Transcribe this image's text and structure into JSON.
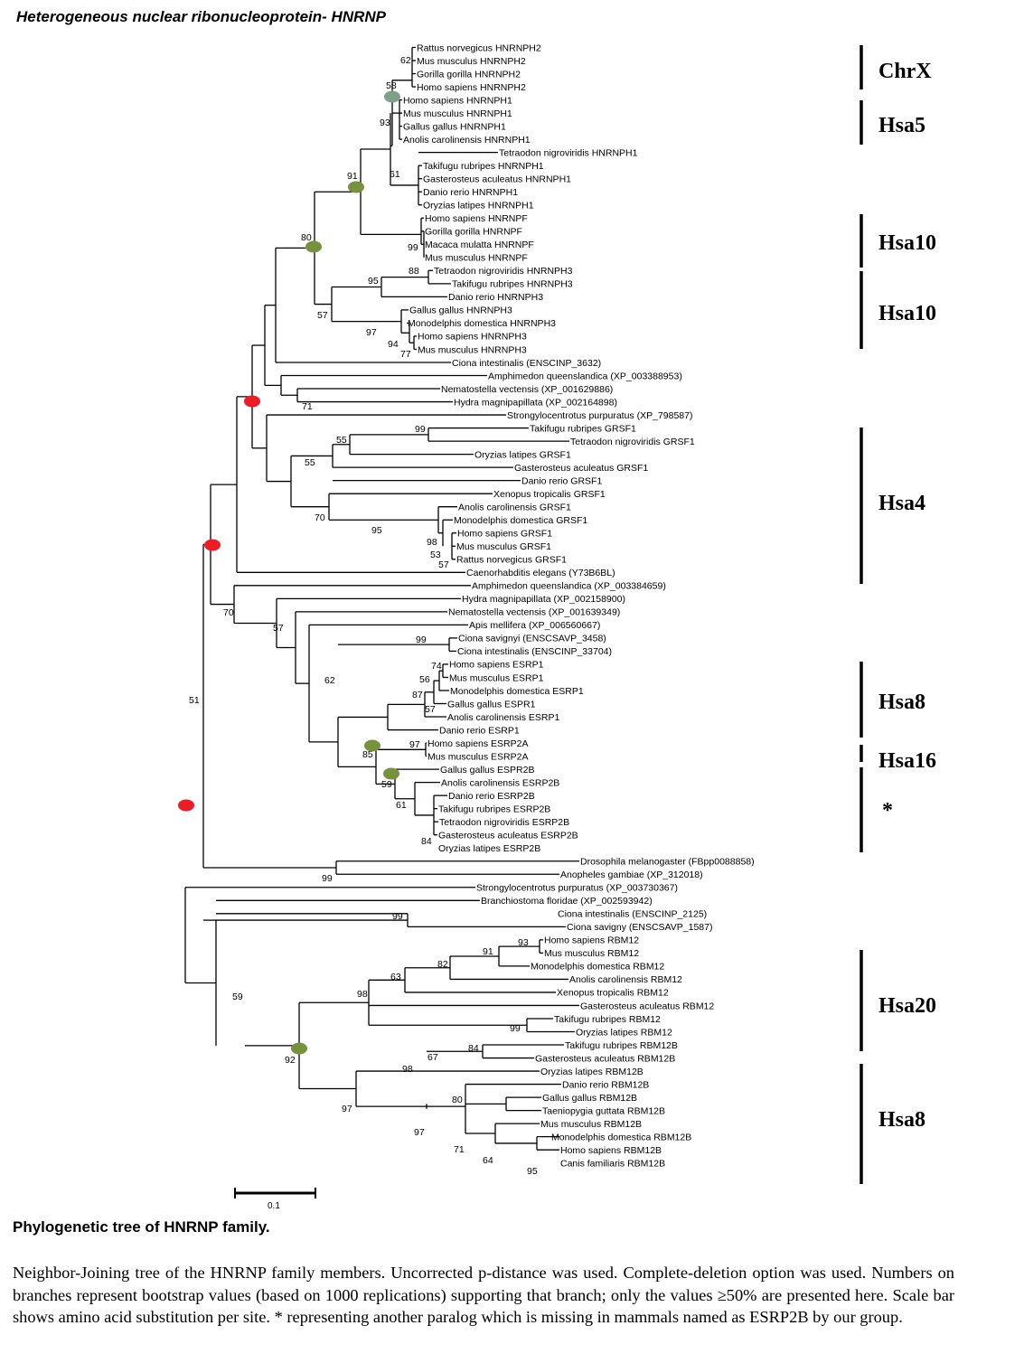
{
  "title": "Heterogeneous nuclear ribonucleoprotein- HNRNP",
  "colors": {
    "red_node": "#ee1c24",
    "green_node": "#76923c",
    "grey_node": "#7f9f86",
    "line": "#000000"
  },
  "tree": {
    "leaves": [
      "Rattus norvegicus HNRNPH2",
      "Mus musculus HNRNPH2",
      "Gorilla gorilla HNRNPH2",
      "Homo sapiens HNRNPH2",
      "Homo sapiens HNRNPH1",
      "Mus musculus HNRNPH1",
      "Gallus gallus HNRNPH1",
      "Anolis carolinensis HNRNPH1",
      "Tetraodon nigroviridis HNRNPH1",
      "Takifugu rubripes HNRNPH1",
      "Gasterosteus aculeatus HNRNPH1",
      "Danio rerio HNRNPH1",
      "Oryzias latipes HNRNPH1",
      "Homo sapiens HNRNPF",
      "Gorilla gorilla HNRNPF",
      "Macaca mulatta HNRNPF",
      "Mus musculus HNRNPF",
      "Tetraodon nigroviridis HNRNPH3",
      "Takifugu rubripes HNRNPH3",
      "Danio rerio HNRNPH3",
      "Gallus gallus HNRNPH3",
      "Monodelphis domestica HNRNPH3",
      "Homo sapiens HNRNPH3",
      "Mus musculus HNRNPH3",
      "Ciona intestinalis (ENSCINP_3632)",
      "Amphimedon queenslandica (XP_003388953)",
      "Nematostella vectensis (XP_001629886)",
      "Hydra magnipapillata (XP_002164898)",
      "Strongylocentrotus purpuratus (XP_798587)",
      "Takifugu rubripes GRSF1",
      "Tetraodon nigroviridis GRSF1",
      "Oryzias latipes GRSF1",
      "Gasterosteus aculeatus GRSF1",
      "Danio rerio GRSF1",
      "Xenopus tropicalis GRSF1",
      "Anolis carolinensis GRSF1",
      "Monodelphis domestica GRSF1",
      "Homo sapiens GRSF1",
      "Mus musculus GRSF1",
      "Rattus norvegicus GRSF1",
      "Caenorhabditis elegans (Y73B6BL)",
      "Amphimedon queenslandica (XP_003384659)",
      "Hydra magnipapillata (XP_002158900)",
      "Nematostella vectensis (XP_001639349)",
      "Apis mellifera (XP_006560667)",
      "Ciona savignyi (ENSCSAVP_3458)",
      "Ciona intestinalis (ENSCINP_33704)",
      "Homo sapiens ESRP1",
      "Mus musculus ESRP1",
      "Monodelphis domestica ESRP1",
      "Gallus gallus ESPR1",
      "Anolis carolinensis ESRP1",
      "Danio rerio ESRP1",
      "Homo sapiens ESRP2A",
      "Mus musculus ESRP2A",
      "Gallus gallus ESPR2B",
      "Anolis carolinensis ESRP2B",
      "Danio rerio ESRP2B",
      "Takifugu rubripes ESRP2B",
      "Tetraodon nigroviridis ESRP2B",
      "Gasterosteus aculeatus ESRP2B",
      "Oryzias latipes ESRP2B",
      "Drosophila melanogaster (FBpp0088858)",
      "Anopheles gambiae (XP_312018)",
      "Strongylocentrotus purpuratus (XP_003730367)",
      "Branchiostoma floridae (XP_002593942)",
      "Ciona intestinalis (ENSCINP_2125)",
      "Ciona savigny (ENSCSAVP_1587)",
      "Homo sapiens RBM12",
      "Mus musculus RBM12",
      "Monodelphis domestica RBM12",
      "Anolis carolinensis RBM12",
      "Xenopus tropicalis RBM12",
      "Gasterosteus aculeatus RBM12",
      "Takifugu rubripes RBM12",
      "Oryzias latipes RBM12",
      "Takifugu rubripes RBM12B",
      "Gasterosteus aculeatus RBM12B",
      "Oryzias latipes RBM12B",
      "Danio rerio RBM12B",
      "Gallus gallus RBM12B",
      "Taeniopygia guttata RBM12B",
      "Mus musculus RBM12B",
      "Monodelphis domestica RBM12B",
      "Homo sapiens RBM12B",
      "Canis familiaris RBM12B"
    ],
    "bootstrap": [
      "62",
      "58",
      "93",
      "91",
      "61",
      "99",
      "80",
      "88",
      "95",
      "57",
      "97",
      "94",
      "77",
      "71",
      "99",
      "55",
      "55",
      "70",
      "95",
      "98",
      "53",
      "57",
      "70",
      "57",
      "99",
      "74",
      "56",
      "87",
      "57",
      "62",
      "97",
      "85",
      "59",
      "61",
      "84",
      "51",
      "99",
      "99",
      "93",
      "91",
      "82",
      "63",
      "98",
      "99",
      "59",
      "84",
      "67",
      "98",
      "92",
      "80",
      "97",
      "97",
      "71",
      "64",
      "95"
    ],
    "chromosomes": [
      "ChrX",
      "Hsa5",
      "Hsa10",
      "Hsa10",
      "Hsa4",
      "Hsa8",
      "Hsa16",
      "*",
      "Hsa20",
      "Hsa8"
    ],
    "scale_label": "0.1"
  },
  "caption": {
    "heading": "Phylogenetic tree of  HNRNP family.",
    "body": "Neighbor-Joining tree of the  HNRNP family members. Uncorrected p-distance was used. Complete-deletion option was used. Numbers on branches represent bootstrap values (based on 1000 replications) supporting that branch; only the values ≥50% are presented here. Scale bar shows amino acid substitution per site. * representing another paralog which is missing in  mammals named as ESRP2B by our group."
  }
}
